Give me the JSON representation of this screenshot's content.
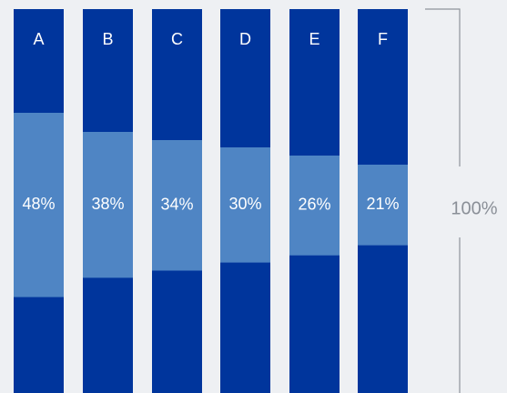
{
  "chart_data": {
    "type": "bar",
    "categories": [
      "A",
      "B",
      "C",
      "D",
      "E",
      "F"
    ],
    "values": [
      48,
      38,
      34,
      30,
      26,
      21
    ],
    "value_labels": [
      "48%",
      "38%",
      "34%",
      "30%",
      "26%",
      "21%"
    ],
    "total_label": "100%",
    "ylim": [
      0,
      100
    ],
    "grid": false,
    "legend": "none",
    "colors": {
      "outer": "#00359c",
      "inner": "#4f85c4",
      "background": "#eef0f3",
      "bracket": "#8f949b",
      "label_text": "#ffffff",
      "total_text": "#8a8f97"
    }
  }
}
